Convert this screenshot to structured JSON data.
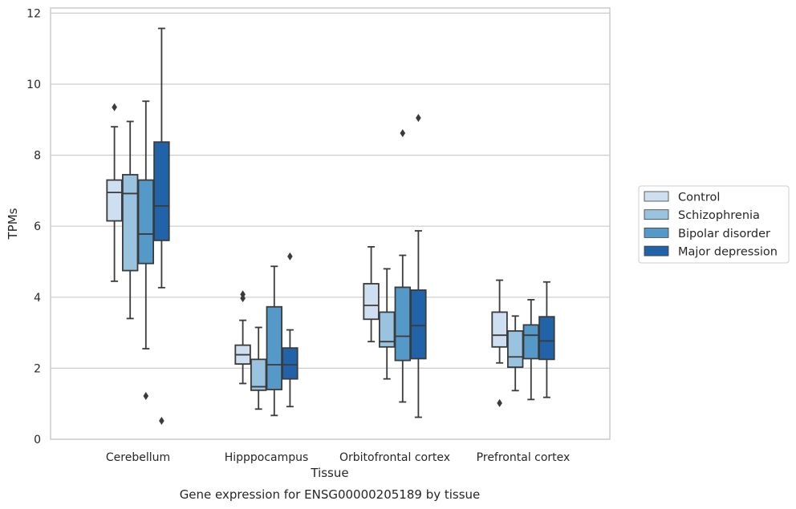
{
  "chart_data": {
    "type": "box",
    "xlabel": "Tissue",
    "ylabel": "TPMs",
    "caption": "Gene expression for ENSG00000205189 by tissue",
    "ylim": [
      0,
      12.2
    ],
    "yticks": [
      0,
      2,
      4,
      6,
      8,
      10,
      12
    ],
    "grid": "horizontal",
    "legend_position": "right, outside plot",
    "categories": [
      "Cerebellum",
      "Hipppocampus",
      "Orbitofrontal cortex",
      "Prefrontal cortex"
    ],
    "series": [
      {
        "name": "Control",
        "color": "#cddff0",
        "boxes": [
          {
            "whislo": 4.45,
            "q1": 6.15,
            "med": 6.95,
            "q3": 7.3,
            "whishi": 8.8,
            "fliers": [
              9.35
            ]
          },
          {
            "whislo": 1.57,
            "q1": 2.12,
            "med": 2.38,
            "q3": 2.65,
            "whishi": 3.35,
            "fliers": [
              4.08,
              3.97
            ]
          },
          {
            "whislo": 2.75,
            "q1": 3.38,
            "med": 3.77,
            "q3": 4.38,
            "whishi": 5.42,
            "fliers": []
          },
          {
            "whislo": 2.15,
            "q1": 2.6,
            "med": 2.93,
            "q3": 3.58,
            "whishi": 4.48,
            "fliers": [
              1.02
            ]
          }
        ]
      },
      {
        "name": "Schizophrenia",
        "color": "#9ac3df",
        "boxes": [
          {
            "whislo": 3.4,
            "q1": 4.75,
            "med": 6.92,
            "q3": 7.45,
            "whishi": 8.95,
            "fliers": []
          },
          {
            "whislo": 0.85,
            "q1": 1.38,
            "med": 1.48,
            "q3": 2.25,
            "whishi": 3.15,
            "fliers": []
          },
          {
            "whislo": 1.7,
            "q1": 2.6,
            "med": 2.75,
            "q3": 3.58,
            "whishi": 4.8,
            "fliers": []
          },
          {
            "whislo": 1.37,
            "q1": 2.03,
            "med": 2.32,
            "q3": 3.05,
            "whishi": 3.47,
            "fliers": []
          }
        ]
      },
      {
        "name": "Bipolar disorder",
        "color": "#5599c8",
        "boxes": [
          {
            "whislo": 2.55,
            "q1": 4.95,
            "med": 5.78,
            "q3": 7.3,
            "whishi": 9.52,
            "fliers": [
              1.22
            ]
          },
          {
            "whislo": 0.67,
            "q1": 1.4,
            "med": 2.1,
            "q3": 3.73,
            "whishi": 4.87,
            "fliers": []
          },
          {
            "whislo": 1.05,
            "q1": 2.22,
            "med": 2.9,
            "q3": 4.28,
            "whishi": 5.18,
            "fliers": [
              8.62
            ]
          },
          {
            "whislo": 1.12,
            "q1": 2.27,
            "med": 2.93,
            "q3": 3.22,
            "whishi": 3.93,
            "fliers": []
          }
        ]
      },
      {
        "name": "Major depression",
        "color": "#2163a8",
        "boxes": [
          {
            "whislo": 4.27,
            "q1": 5.6,
            "med": 6.57,
            "q3": 8.37,
            "whishi": 11.57,
            "fliers": [
              0.52
            ]
          },
          {
            "whislo": 0.92,
            "q1": 1.7,
            "med": 2.1,
            "q3": 2.57,
            "whishi": 3.08,
            "fliers": [
              5.15
            ]
          },
          {
            "whislo": 0.62,
            "q1": 2.27,
            "med": 3.2,
            "q3": 4.2,
            "whishi": 5.87,
            "fliers": [
              9.05
            ]
          },
          {
            "whislo": 1.18,
            "q1": 2.25,
            "med": 2.77,
            "q3": 3.45,
            "whishi": 4.43,
            "fliers": []
          }
        ]
      }
    ]
  }
}
